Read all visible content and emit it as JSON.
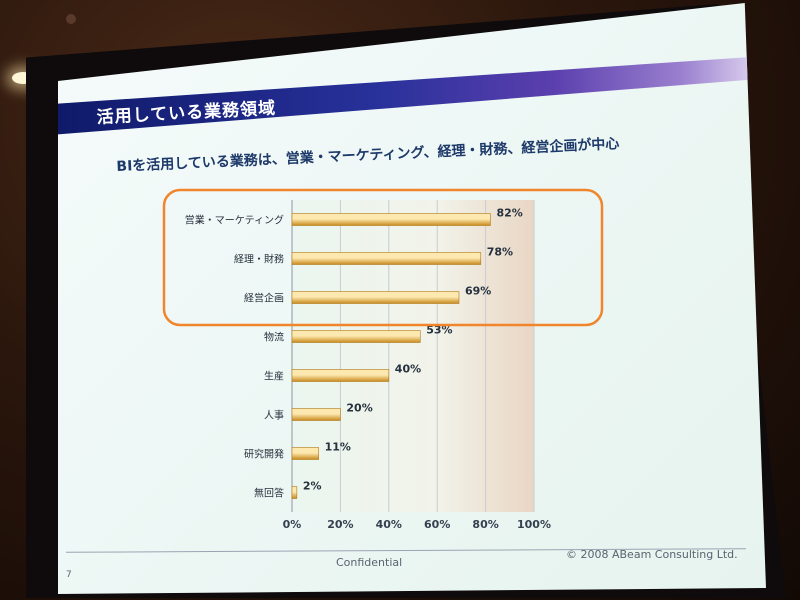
{
  "slide": {
    "title": "活用している業務領域",
    "subtitle": "BIを活用している業務は、営業・マーケティング、経理・財務、経営企画が中心",
    "footer_center": "Confidential",
    "footer_right": "© 2008 ABeam Consulting Ltd.",
    "page_number": "7"
  },
  "colors": {
    "bar_light": "#fde9b0",
    "bar_dark": "#c98a1c",
    "highlight_outline": "#f0852c",
    "title_band": "#28319a"
  },
  "chart_data": {
    "type": "bar",
    "orientation": "horizontal",
    "categories": [
      "営業・マーケティング",
      "経理・財務",
      "経営企画",
      "物流",
      "生産",
      "人事",
      "研究開発",
      "無回答"
    ],
    "values": [
      82,
      78,
      69,
      53,
      40,
      20,
      11,
      2
    ],
    "value_labels": [
      "82%",
      "78%",
      "69%",
      "53%",
      "40%",
      "20%",
      "11%",
      "2%"
    ],
    "xlim": [
      0,
      100
    ],
    "x_ticks": [
      "0%",
      "20%",
      "40%",
      "60%",
      "80%",
      "100%"
    ],
    "highlighted_categories": [
      "営業・マーケティング",
      "経理・財務",
      "経営企画"
    ],
    "grid": true,
    "legend": "none"
  }
}
